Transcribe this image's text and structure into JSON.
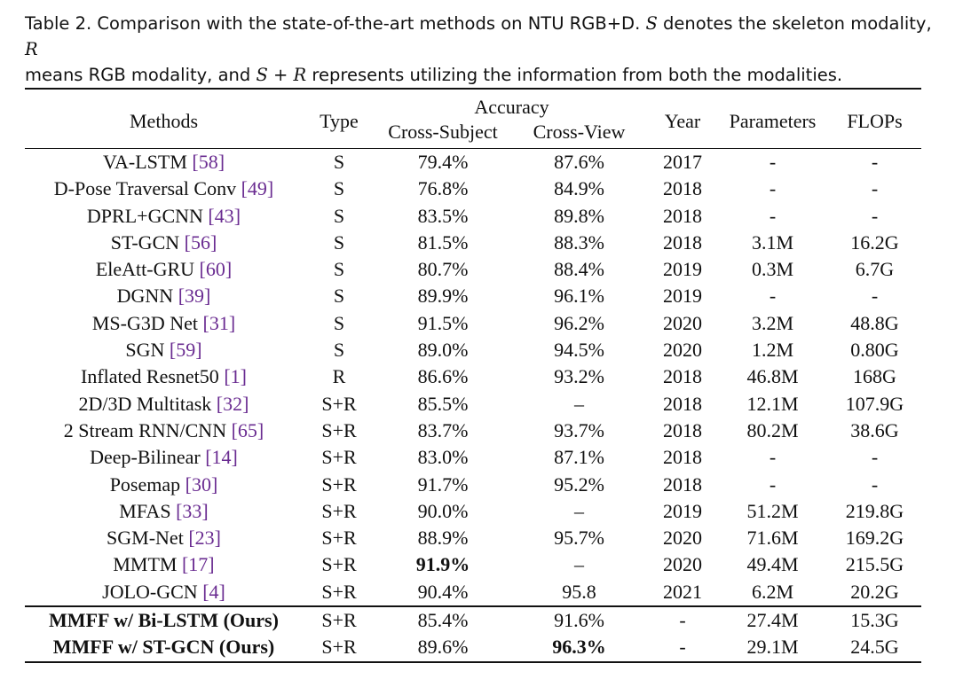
{
  "caption": {
    "prefix": "Table 2.  Comparison with the state-of-the-art methods on NTU RGB+D. ",
    "s": "S",
    "part1": " denotes the skeleton modality, ",
    "r": "R",
    "part2": "means RGB modality, and ",
    "sr": "S + R",
    "part3": " represents utilizing the information from both the modalities."
  },
  "headers": {
    "methods": "Methods",
    "type": "Type",
    "accuracy": "Accuracy",
    "cross_subject": "Cross-Subject",
    "cross_view": "Cross-View",
    "year": "Year",
    "parameters": "Parameters",
    "flops": "FLOPs"
  },
  "rows": [
    {
      "method": "VA-LSTM ",
      "ref": "[58]",
      "type": "S",
      "cs": "79.4%",
      "cv": "87.6%",
      "year": "2017",
      "params": "-",
      "flops": "-"
    },
    {
      "method": "D-Pose Traversal Conv ",
      "ref": "[49]",
      "type": "S",
      "cs": "76.8%",
      "cv": "84.9%",
      "year": "2018",
      "params": "-",
      "flops": "-"
    },
    {
      "method": "DPRL+GCNN ",
      "ref": "[43]",
      "type": "S",
      "cs": "83.5%",
      "cv": "89.8%",
      "year": "2018",
      "params": "-",
      "flops": "-"
    },
    {
      "method": "ST-GCN ",
      "ref": "[56]",
      "type": "S",
      "cs": "81.5%",
      "cv": "88.3%",
      "year": "2018",
      "params": "3.1M",
      "flops": "16.2G"
    },
    {
      "method": "EleAtt-GRU ",
      "ref": "[60]",
      "type": "S",
      "cs": "80.7%",
      "cv": "88.4%",
      "year": "2019",
      "params": "0.3M",
      "flops": "6.7G"
    },
    {
      "method": "DGNN ",
      "ref": "[39]",
      "type": "S",
      "cs": "89.9%",
      "cv": "96.1%",
      "year": "2019",
      "params": "-",
      "flops": "-"
    },
    {
      "method": "MS-G3D Net ",
      "ref": "[31]",
      "type": "S",
      "cs": "91.5%",
      "cv": "96.2%",
      "year": "2020",
      "params": "3.2M",
      "flops": "48.8G"
    },
    {
      "method": "SGN ",
      "ref": "[59]",
      "type": "S",
      "cs": "89.0%",
      "cv": "94.5%",
      "year": "2020",
      "params": "1.2M",
      "flops": "0.80G"
    },
    {
      "method": "Inflated Resnet50 ",
      "ref": "[1]",
      "type": "R",
      "cs": "86.6%",
      "cv": "93.2%",
      "year": "2018",
      "params": "46.8M",
      "flops": "168G"
    },
    {
      "method": "2D/3D Multitask ",
      "ref": "[32]",
      "type": "S+R",
      "cs": "85.5%",
      "cv": "–",
      "year": "2018",
      "params": "12.1M",
      "flops": "107.9G"
    },
    {
      "method": "2 Stream RNN/CNN ",
      "ref": "[65]",
      "type": "S+R",
      "cs": "83.7%",
      "cv": "93.7%",
      "year": "2018",
      "params": "80.2M",
      "flops": "38.6G"
    },
    {
      "method": "Deep-Bilinear ",
      "ref": "[14]",
      "type": "S+R",
      "cs": "83.0%",
      "cv": "87.1%",
      "year": "2018",
      "params": "-",
      "flops": "-"
    },
    {
      "method": "Posemap ",
      "ref": "[30]",
      "type": "S+R",
      "cs": "91.7%",
      "cv": "95.2%",
      "year": "2018",
      "params": "-",
      "flops": "-"
    },
    {
      "method": "MFAS ",
      "ref": "[33]",
      "type": "S+R",
      "cs": "90.0%",
      "cv": "–",
      "year": "2019",
      "params": "51.2M",
      "flops": "219.8G"
    },
    {
      "method": "SGM-Net ",
      "ref": "[23]",
      "type": "S+R",
      "cs": "88.9%",
      "cv": "95.7%",
      "year": "2020",
      "params": "71.6M",
      "flops": "169.2G"
    },
    {
      "method": "MMTM ",
      "ref": "[17]",
      "type": "S+R",
      "cs": "91.9%",
      "cv": "–",
      "year": "2020",
      "params": "49.4M",
      "flops": "215.5G"
    },
    {
      "method": "JOLO-GCN ",
      "ref": "[4]",
      "type": "S+R",
      "cs": "90.4%",
      "cv": "95.8",
      "year": "2021",
      "params": "6.2M",
      "flops": "20.2G"
    }
  ],
  "ours": [
    {
      "method": "MMFF w/ Bi-LSTM (Ours)",
      "type": "S+R",
      "cs": "85.4%",
      "cv": "91.6%",
      "year": "-",
      "params": "27.4M",
      "flops": "15.3G"
    },
    {
      "method": "MMFF w/ ST-GCN (Ours)",
      "type": "S+R",
      "cs": "89.6%",
      "cv": "96.3%",
      "year": "-",
      "params": "29.1M",
      "flops": "24.5G"
    }
  ]
}
